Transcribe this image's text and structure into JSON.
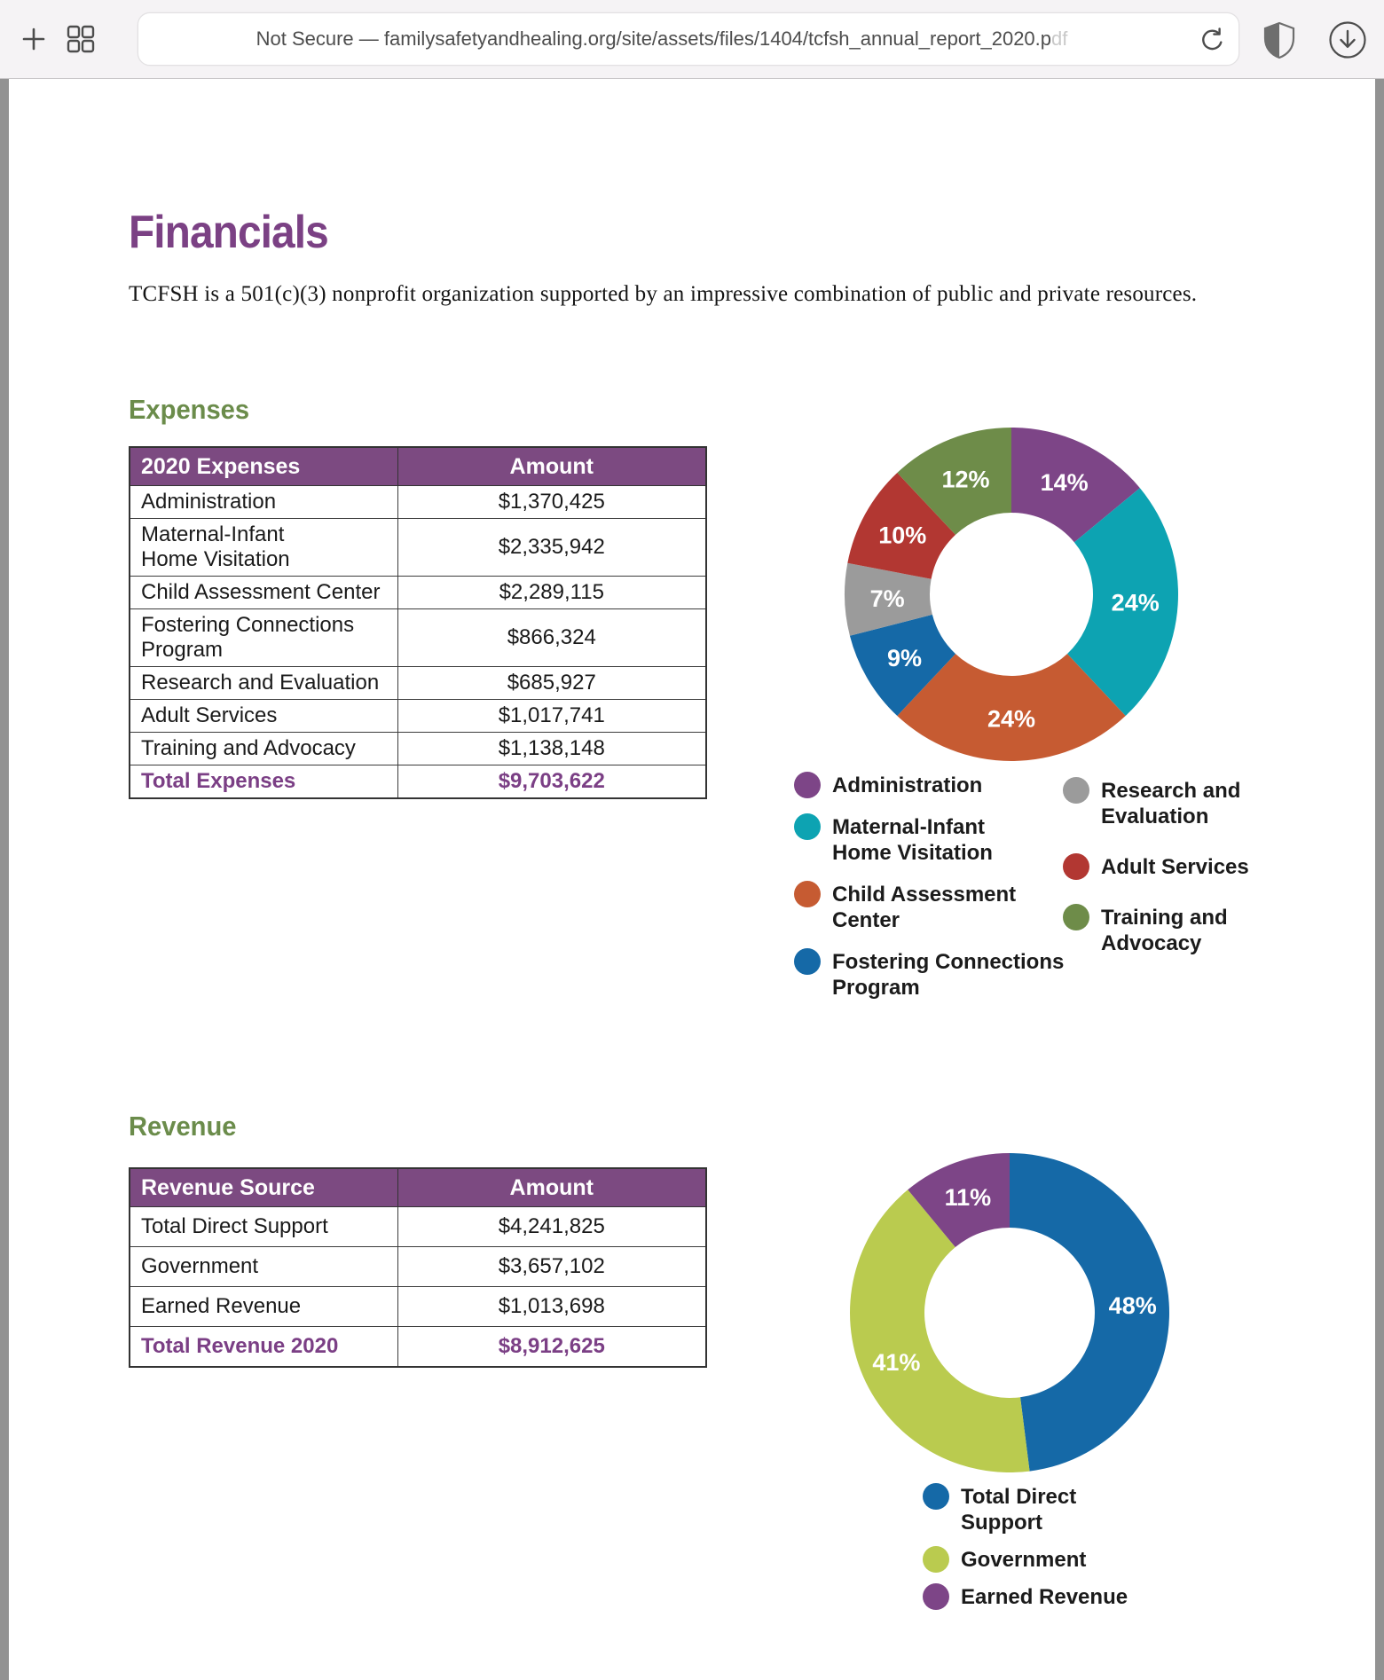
{
  "browser": {
    "address_text": "Not Secure — familysafetyandhealing.org/site/assets/files/1404/tcfsh_annual_report_2020.p",
    "address_fade": "df",
    "icons": {
      "left": [
        "new-tab-icon",
        "tab-overview-icon"
      ],
      "address": [
        "reload-icon"
      ],
      "right": [
        "privacy-shield-icon",
        "download-icon"
      ]
    }
  },
  "document": {
    "title": "Financials",
    "intro": "TCFSH is a 501(c)(3) nonprofit organization supported by an impressive combination of public and private resources.",
    "expenses": {
      "heading": "Expenses",
      "table": {
        "headers": [
          "2020 Expenses",
          "Amount"
        ],
        "rows": [
          {
            "label": "Administration",
            "amount": "$1,370,425"
          },
          {
            "label": "Maternal-Infant Home Visitation",
            "label_lines": [
              "Maternal-Infant",
              "Home Visitation"
            ],
            "amount": "$2,335,942"
          },
          {
            "label": "Child Assessment Center",
            "amount": "$2,289,115"
          },
          {
            "label": "Fostering Connections Program",
            "label_lines": [
              "Fostering Connections",
              "Program"
            ],
            "amount": "$866,324"
          },
          {
            "label": "Research and Evaluation",
            "amount": "$685,927"
          },
          {
            "label": "Adult Services",
            "amount": "$1,017,741"
          },
          {
            "label": "Training and Advocacy",
            "amount": "$1,138,148"
          },
          {
            "label": "Total Expenses",
            "amount": "$9,703,622",
            "total": true
          }
        ]
      }
    },
    "revenue": {
      "heading": "Revenue",
      "table": {
        "headers": [
          "Revenue Source",
          "Amount"
        ],
        "rows": [
          {
            "label": "Total Direct Support",
            "amount": "$4,241,825"
          },
          {
            "label": "Government",
            "amount": "$3,657,102"
          },
          {
            "label": "Earned Revenue",
            "amount": "$1,013,698"
          },
          {
            "label": "Total Revenue 2020",
            "amount": "$8,912,625",
            "total": true
          }
        ]
      }
    }
  },
  "chart_data": [
    {
      "type": "pie",
      "subtype": "donut",
      "title": "2020 Expenses",
      "start_angle_deg": 0,
      "direction": "clockwise",
      "legend_position": "below, two columns",
      "segments": [
        {
          "label": "Administration",
          "pct": 14,
          "color": "#7D4587",
          "legend_lines": [
            "Administration"
          ]
        },
        {
          "label": "Maternal-Infant Home Visitation",
          "pct": 24,
          "color": "#0DA3B2",
          "legend_lines": [
            "Maternal-Infant",
            "Home Visitation"
          ]
        },
        {
          "label": "Child Assessment Center",
          "pct": 24,
          "color": "#C65B32",
          "legend_lines": [
            "Child Assessment",
            "Center"
          ]
        },
        {
          "label": "Fostering Connections Program",
          "pct": 9,
          "color": "#1569A7",
          "legend_lines": [
            "Fostering Connections",
            "Program"
          ]
        },
        {
          "label": "Research and Evaluation",
          "pct": 7,
          "color": "#9B9B9B",
          "legend_lines": [
            "Research and",
            "Evaluation"
          ]
        },
        {
          "label": "Adult Services",
          "pct": 10,
          "color": "#B23732",
          "legend_lines": [
            "Adult Services"
          ]
        },
        {
          "label": "Training and Advocacy",
          "pct": 12,
          "color": "#6E8C49",
          "legend_lines": [
            "Training and",
            "Advocacy"
          ]
        }
      ]
    },
    {
      "type": "pie",
      "subtype": "donut",
      "title": "Revenue",
      "start_angle_deg": 0,
      "direction": "clockwise",
      "legend_position": "below, one column",
      "segments": [
        {
          "label": "Total Direct Support",
          "pct": 48,
          "color": "#1569A7",
          "legend_lines": [
            "Total Direct",
            "Support"
          ]
        },
        {
          "label": "Government",
          "pct": 41,
          "color": "#BACB4F",
          "legend_lines": [
            "Government"
          ]
        },
        {
          "label": "Earned Revenue",
          "pct": 11,
          "color": "#7D4587",
          "legend_lines": [
            "Earned Revenue"
          ]
        }
      ]
    }
  ]
}
